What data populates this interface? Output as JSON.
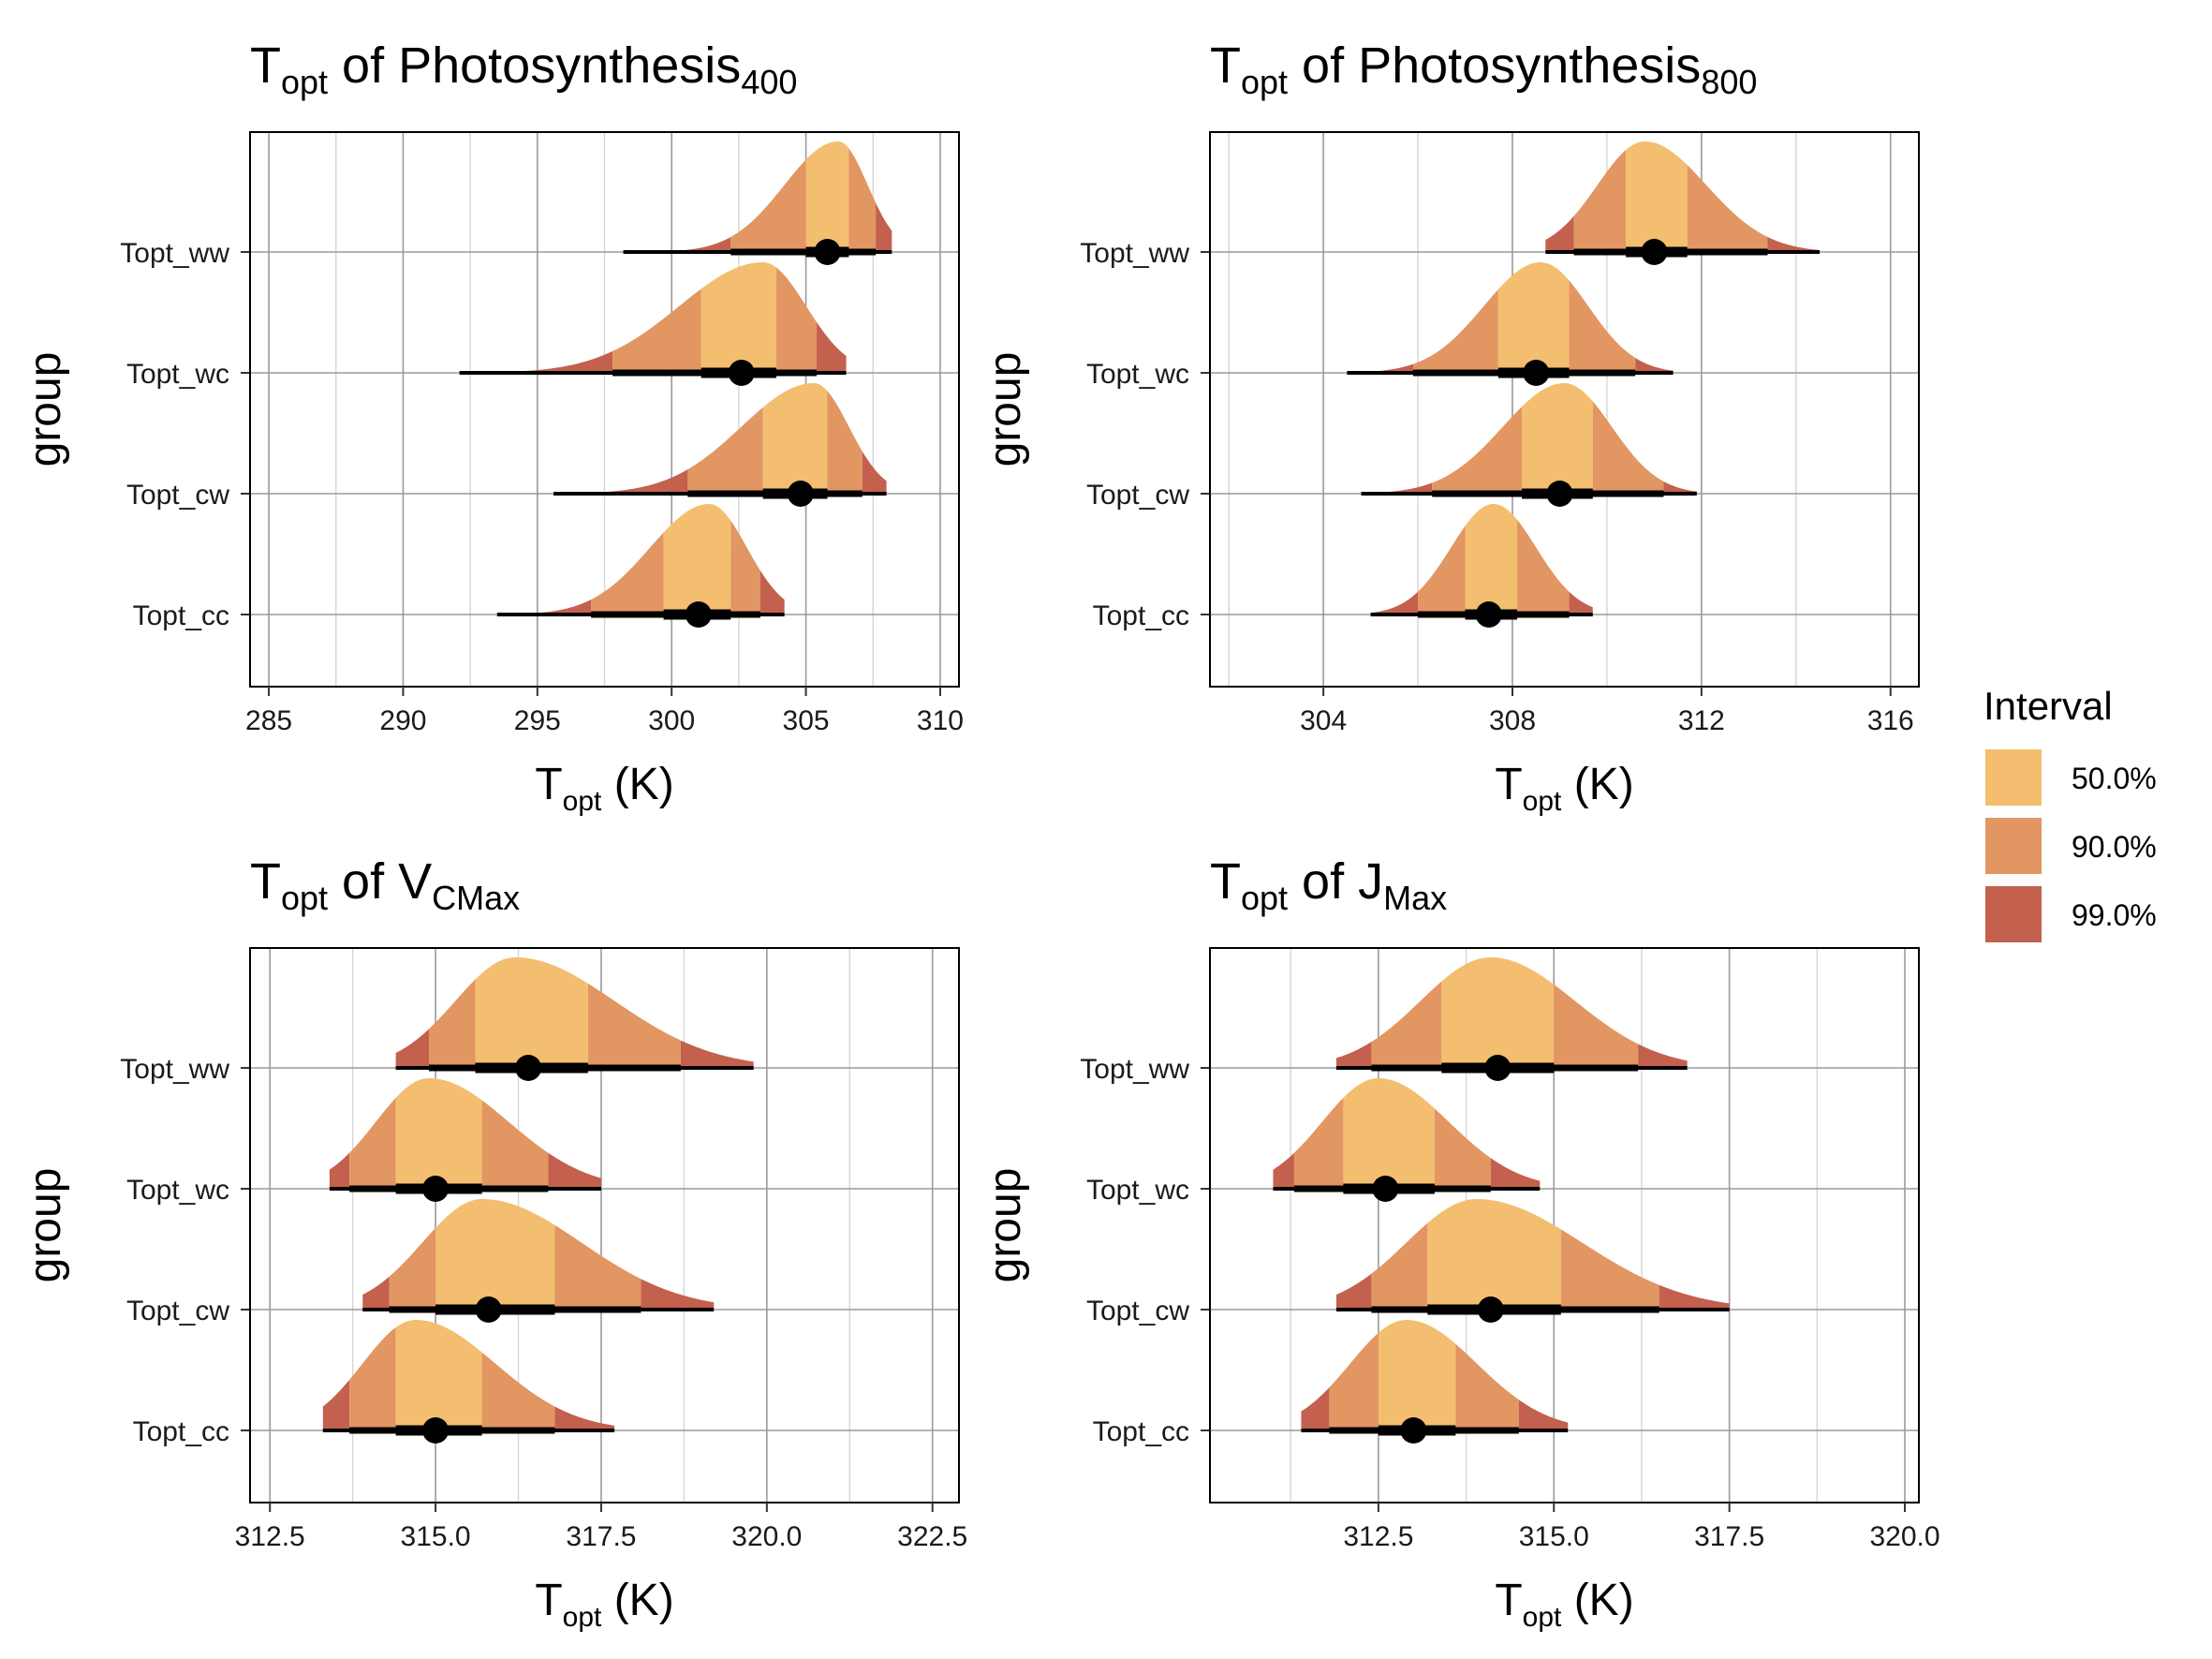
{
  "colors": {
    "interval_50": "#F3BE6F",
    "interval_90": "#E29662",
    "interval_99": "#C3604E",
    "grid_major": "#9a9a9a",
    "grid_minor": "#d6d6d6",
    "point": "#000000"
  },
  "legend": {
    "title": "Interval",
    "items": [
      {
        "label": "50.0%",
        "color_key": "interval_50"
      },
      {
        "label": "90.0%",
        "color_key": "interval_90"
      },
      {
        "label": "99.0%",
        "color_key": "interval_99"
      }
    ]
  },
  "chart_data": [
    {
      "type": "density-interval",
      "title_main": "T",
      "title_sub1": "opt",
      "title_mid": " of Photosynthesis",
      "title_sub2": "400",
      "xlabel_main": "T",
      "xlabel_sub": "opt",
      "xlabel_unit": " (K)",
      "ylabel": "group",
      "xlim": [
        284.3,
        310.7
      ],
      "xticks": [
        285,
        290,
        295,
        300,
        305,
        310
      ],
      "xtick_labels": [
        "285",
        "290",
        "295",
        "300",
        "305",
        "310"
      ],
      "xminor": [
        287.5,
        292.5,
        297.5,
        302.5,
        307.5
      ],
      "categories": [
        "Topt_ww",
        "Topt_wc",
        "Topt_cw",
        "Topt_cc"
      ],
      "series": [
        {
          "group": "Topt_ww",
          "median": 305.8,
          "mode": 306.2,
          "q50": [
            305.0,
            306.6
          ],
          "q90": [
            302.2,
            307.6
          ],
          "q99": [
            298.2,
            308.2
          ],
          "left_tail": 2.0,
          "right_tail": 1.1
        },
        {
          "group": "Topt_wc",
          "median": 302.6,
          "mode": 303.4,
          "q50": [
            301.1,
            303.9
          ],
          "q90": [
            297.8,
            305.4
          ],
          "q99": [
            292.1,
            306.5
          ],
          "left_tail": 3.1,
          "right_tail": 1.6
        },
        {
          "group": "Topt_cw",
          "median": 304.8,
          "mode": 305.3,
          "q50": [
            303.4,
            305.8
          ],
          "q90": [
            300.6,
            307.1
          ],
          "q99": [
            295.6,
            308.0
          ],
          "left_tail": 2.7,
          "right_tail": 1.3
        },
        {
          "group": "Topt_cc",
          "median": 301.0,
          "mode": 301.4,
          "q50": [
            299.7,
            302.2
          ],
          "q90": [
            297.0,
            303.3
          ],
          "q99": [
            293.5,
            304.2
          ],
          "left_tail": 2.2,
          "right_tail": 1.4
        }
      ]
    },
    {
      "type": "density-interval",
      "title_main": "T",
      "title_sub1": "opt",
      "title_mid": " of Photosynthesis",
      "title_sub2": "800",
      "xlabel_main": "T",
      "xlabel_sub": "opt",
      "xlabel_unit": " (K)",
      "ylabel": "group",
      "xlim": [
        301.6,
        316.6
      ],
      "xticks": [
        304,
        308,
        312,
        316
      ],
      "xtick_labels": [
        "304",
        "308",
        "312",
        "316"
      ],
      "xminor": [
        302,
        306,
        310,
        314
      ],
      "categories": [
        "Topt_ww",
        "Topt_wc",
        "Topt_cw",
        "Topt_cc"
      ],
      "series": [
        {
          "group": "Topt_ww",
          "median": 311.0,
          "mode": 310.8,
          "q50": [
            310.4,
            311.7
          ],
          "q90": [
            309.3,
            313.4
          ],
          "q99": [
            308.7,
            314.5
          ],
          "left_tail": 1.0,
          "right_tail": 1.3
        },
        {
          "group": "Topt_wc",
          "median": 308.5,
          "mode": 308.6,
          "q50": [
            307.7,
            309.2
          ],
          "q90": [
            305.9,
            310.6
          ],
          "q99": [
            304.5,
            311.4
          ],
          "left_tail": 1.2,
          "right_tail": 1.0
        },
        {
          "group": "Topt_cw",
          "median": 309.0,
          "mode": 309.1,
          "q50": [
            308.2,
            309.7
          ],
          "q90": [
            306.3,
            311.2
          ],
          "q99": [
            304.8,
            311.9
          ],
          "left_tail": 1.3,
          "right_tail": 1.0
        },
        {
          "group": "Topt_cc",
          "median": 307.5,
          "mode": 307.6,
          "q50": [
            307.0,
            308.1
          ],
          "q90": [
            306.0,
            309.2
          ],
          "q99": [
            305.0,
            309.7
          ],
          "left_tail": 0.9,
          "right_tail": 0.9
        }
      ]
    },
    {
      "type": "density-interval",
      "title_main": "T",
      "title_sub1": "opt",
      "title_mid": " of V",
      "title_sub2": "CMax",
      "xlabel_main": "T",
      "xlabel_sub": "opt",
      "xlabel_unit": " (K)",
      "ylabel": "group",
      "xlim": [
        312.2,
        322.9
      ],
      "xticks": [
        312.5,
        315.0,
        317.5,
        320.0,
        322.5
      ],
      "xtick_labels": [
        "312.5",
        "315.0",
        "317.5",
        "320.0",
        "322.5"
      ],
      "xminor": [
        313.75,
        316.25,
        318.75,
        321.25
      ],
      "categories": [
        "Topt_ww",
        "Topt_wc",
        "Topt_cw",
        "Topt_cc"
      ],
      "series": [
        {
          "group": "Topt_ww",
          "median": 316.4,
          "mode": 316.2,
          "q50": [
            315.6,
            317.3
          ],
          "q90": [
            314.9,
            318.7
          ],
          "q99": [
            314.4,
            319.8
          ],
          "left_tail": 0.9,
          "right_tail": 1.5
        },
        {
          "group": "Topt_wc",
          "median": 315.0,
          "mode": 314.9,
          "q50": [
            314.4,
            315.7
          ],
          "q90": [
            313.7,
            316.7
          ],
          "q99": [
            313.4,
            317.5
          ],
          "left_tail": 0.8,
          "right_tail": 1.2
        },
        {
          "group": "Topt_cw",
          "median": 315.8,
          "mode": 315.7,
          "q50": [
            315.0,
            316.8
          ],
          "q90": [
            314.3,
            318.1
          ],
          "q99": [
            313.9,
            319.2
          ],
          "left_tail": 0.9,
          "right_tail": 1.5
        },
        {
          "group": "Topt_cc",
          "median": 315.0,
          "mode": 314.7,
          "q50": [
            314.4,
            315.7
          ],
          "q90": [
            313.7,
            316.8
          ],
          "q99": [
            313.3,
            317.7
          ],
          "left_tail": 0.8,
          "right_tail": 1.2
        }
      ]
    },
    {
      "type": "density-interval",
      "title_main": "T",
      "title_sub1": "opt",
      "title_mid": " of J",
      "title_sub2": "Max",
      "xlabel_main": "T",
      "xlabel_sub": "opt",
      "xlabel_unit": " (K)",
      "ylabel": "group",
      "xlim": [
        310.1,
        320.2
      ],
      "xticks": [
        312.5,
        315.0,
        317.5,
        320.0
      ],
      "xtick_labels": [
        "312.5",
        "315.0",
        "317.5",
        "320.0"
      ],
      "xminor": [
        311.25,
        313.75,
        316.25,
        318.75
      ],
      "categories": [
        "Topt_ww",
        "Topt_wc",
        "Topt_cw",
        "Topt_cc"
      ],
      "series": [
        {
          "group": "Topt_ww",
          "median": 314.2,
          "mode": 314.1,
          "q50": [
            313.4,
            315.0
          ],
          "q90": [
            312.4,
            316.2
          ],
          "q99": [
            311.9,
            316.9
          ],
          "left_tail": 1.0,
          "right_tail": 1.2
        },
        {
          "group": "Topt_wc",
          "median": 312.6,
          "mode": 312.5,
          "q50": [
            312.0,
            313.3
          ],
          "q90": [
            311.3,
            314.1
          ],
          "q99": [
            311.0,
            314.8
          ],
          "left_tail": 0.8,
          "right_tail": 1.0
        },
        {
          "group": "Topt_cw",
          "median": 314.1,
          "mode": 313.9,
          "q50": [
            313.2,
            315.1
          ],
          "q90": [
            312.4,
            316.5
          ],
          "q99": [
            311.9,
            317.5
          ],
          "left_tail": 1.0,
          "right_tail": 1.5
        },
        {
          "group": "Topt_cc",
          "median": 313.0,
          "mode": 312.9,
          "q50": [
            312.5,
            313.6
          ],
          "q90": [
            311.8,
            314.5
          ],
          "q99": [
            311.4,
            315.2
          ],
          "left_tail": 0.8,
          "right_tail": 1.0
        }
      ]
    }
  ]
}
